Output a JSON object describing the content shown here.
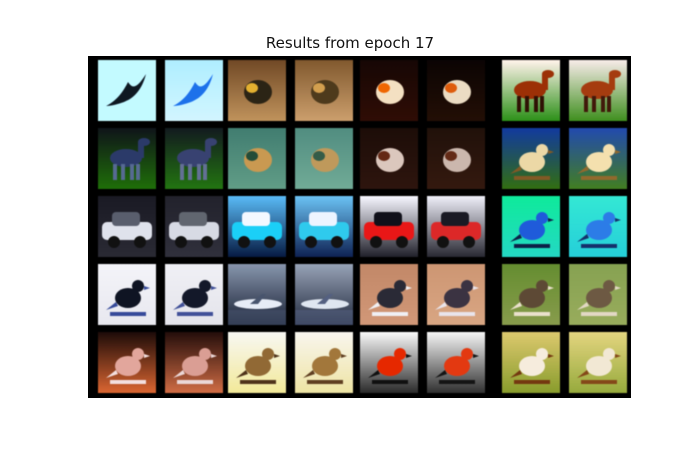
{
  "figure": {
    "title": "Results from epoch 17"
  },
  "grid": {
    "rows": 5,
    "cols": 8
  },
  "tiles": [
    {
      "subject": "bird-silhouette",
      "sky": "#ccf8ff",
      "ground": "#ccf8ff",
      "body": "#101820",
      "accent": "#2a2f40",
      "shape": "bird-fly"
    },
    {
      "subject": "bird-silhouette-reconstruction",
      "sky": "#b9ecff",
      "ground": "#d8f4ff",
      "body": "#2c6fd0",
      "accent": "#5aa6ff",
      "shape": "bird-fly"
    },
    {
      "subject": "bird-on-ground",
      "sky": "#6a4a2e",
      "ground": "#b89468",
      "body": "#2a2418",
      "accent": "#d9b04a",
      "shape": "blob"
    },
    {
      "subject": "bird-on-ground-reconstruction",
      "sky": "#7a5a38",
      "ground": "#c4a078",
      "body": "#4a3a22",
      "accent": "#caa060",
      "shape": "blob"
    },
    {
      "subject": "dark-scene",
      "sky": "#140806",
      "ground": "#2a0e08",
      "body": "#f0e0c8",
      "accent": "#d86a1a",
      "shape": "blob"
    },
    {
      "subject": "dark-scene-reconstruction",
      "sky": "#0a0404",
      "ground": "#201008",
      "body": "#e8dcc8",
      "accent": "#c86020",
      "shape": "blob"
    },
    {
      "subject": "horse",
      "sky": "#fff4ee",
      "ground": "#3a8a2a",
      "body": "#8a3412",
      "accent": "#2a1208",
      "shape": "quadruped"
    },
    {
      "subject": "horse-reconstruction",
      "sky": "#f6ecea",
      "ground": "#4a8a30",
      "body": "#94401c",
      "accent": "#3a1a0e",
      "shape": "quadruped"
    },
    {
      "subject": "ostrich",
      "sky": "#101418",
      "ground": "#2a6a18",
      "body": "#2e3a60",
      "accent": "#5a6a8a",
      "shape": "quadruped"
    },
    {
      "subject": "ostrich-reconstruction",
      "sky": "#141a1e",
      "ground": "#2e7020",
      "body": "#3a4268",
      "accent": "#66708e",
      "shape": "quadruped"
    },
    {
      "subject": "frog",
      "sky": "#4a7a70",
      "ground": "#6a9a88",
      "body": "#c09a60",
      "accent": "#2a4a3a",
      "shape": "blob"
    },
    {
      "subject": "frog-reconstruction",
      "sky": "#5a8a80",
      "ground": "#7aa898",
      "body": "#b89a68",
      "accent": "#3a5a4a",
      "shape": "blob"
    },
    {
      "subject": "horse-rider",
      "sky": "#1a0e0a",
      "ground": "#2a1610",
      "body": "#d8c8c0",
      "accent": "#5a2a1a",
      "shape": "blob"
    },
    {
      "subject": "horse-rider-reconstruction",
      "sky": "#1e120c",
      "ground": "#301a12",
      "body": "#c8b8b0",
      "accent": "#5a2c1c",
      "shape": "blob"
    },
    {
      "subject": "bird-perched",
      "sky": "#1a3a8a",
      "ground": "#3a6a20",
      "body": "#e8d8b0",
      "accent": "#7a5a30",
      "shape": "bird-perch"
    },
    {
      "subject": "bird-perched-reconstruction",
      "sky": "#2a4a9a",
      "ground": "#4a7a30",
      "body": "#f0e0b8",
      "accent": "#8a6a3a",
      "shape": "bird-perch"
    },
    {
      "subject": "car",
      "sky": "#1a1a22",
      "ground": "#2a2a32",
      "body": "#e0e2ea",
      "accent": "#5a5e6a",
      "shape": "car"
    },
    {
      "subject": "car-reconstruction",
      "sky": "#22222a",
      "ground": "#30303a",
      "body": "#d8dae2",
      "accent": "#62666e",
      "shape": "car"
    },
    {
      "subject": "truck",
      "sky": "#6ab8e8",
      "ground": "#0a1a3a",
      "body": "#38c8e8",
      "accent": "#f4f8ff",
      "shape": "car"
    },
    {
      "subject": "truck-reconstruction",
      "sky": "#7ac0e8",
      "ground": "#12224a",
      "body": "#48c4e0",
      "accent": "#eef4ff",
      "shape": "car"
    },
    {
      "subject": "vehicle",
      "sky": "#f8f8ff",
      "ground": "#202028",
      "body": "#c82020",
      "accent": "#101018",
      "shape": "car"
    },
    {
      "subject": "vehicle-reconstruction",
      "sky": "#f0f0f8",
      "ground": "#282830",
      "body": "#c03030",
      "accent": "#1a1a22",
      "shape": "car"
    },
    {
      "subject": "blue-bird",
      "sky": "#30e0a0",
      "ground": "#40d0c0",
      "body": "#2a5ac0",
      "accent": "#102040",
      "shape": "bird-perch"
    },
    {
      "subject": "blue-bird-reconstruction",
      "sky": "#50e0d0",
      "ground": "#40c8d0",
      "body": "#3a7ad0",
      "accent": "#1a3060",
      "shape": "bird-perch"
    },
    {
      "subject": "magpie",
      "sky": "#f4f4f8",
      "ground": "#e8e8ee",
      "body": "#101420",
      "accent": "#3a4a8a",
      "shape": "bird-perch"
    },
    {
      "subject": "magpie-reconstruction",
      "sky": "#f0f0f4",
      "ground": "#e4e4ea",
      "body": "#141826",
      "accent": "#44508a",
      "shape": "bird-perch"
    },
    {
      "subject": "airplane",
      "sky": "#8a96a8",
      "ground": "#1a2030",
      "body": "#e8ecf4",
      "accent": "#4a5468",
      "shape": "plane"
    },
    {
      "subject": "airplane-reconstruction",
      "sky": "#9aa4b4",
      "ground": "#222838",
      "body": "#e0e6ee",
      "accent": "#56607a",
      "shape": "plane"
    },
    {
      "subject": "bird-on-sand",
      "sky": "#b88a70",
      "ground": "#c89a80",
      "body": "#2a2a34",
      "accent": "#f0f0f4",
      "shape": "bird-perch"
    },
    {
      "subject": "bird-on-sand-reconstruction",
      "sky": "#c4987c",
      "ground": "#d0a88c",
      "body": "#3a3440",
      "accent": "#e8e4ea",
      "shape": "bird-perch"
    },
    {
      "subject": "bird-in-grass",
      "sky": "#6a8a40",
      "ground": "#8a9a5a",
      "body": "#5a4a3a",
      "accent": "#e8e0d0",
      "shape": "bird-perch"
    },
    {
      "subject": "bird-in-grass-reconstruction",
      "sky": "#8aa060",
      "ground": "#9aaa6a",
      "body": "#6a5a48",
      "accent": "#e0d8c8",
      "shape": "bird-perch"
    },
    {
      "subject": "pink-bird",
      "sky": "#1a0c0a",
      "ground": "#c86a40",
      "body": "#d8a8a0",
      "accent": "#f0e0e0",
      "shape": "bird-perch"
    },
    {
      "subject": "pink-bird-reconstruction",
      "sky": "#200e0c",
      "ground": "#c07050",
      "body": "#d0a098",
      "accent": "#e8d8d8",
      "shape": "bird-perch"
    },
    {
      "subject": "sparrow",
      "sky": "#f8f8f4",
      "ground": "#f0e8a8",
      "body": "#8a6a40",
      "accent": "#4a3420",
      "shape": "bird-perch"
    },
    {
      "subject": "sparrow-reconstruction",
      "sky": "#f8f6f0",
      "ground": "#ece4b0",
      "body": "#9a7848",
      "accent": "#5a4028",
      "shape": "bird-perch"
    },
    {
      "subject": "rooster",
      "sky": "#fafafa",
      "ground": "#2a2a2a",
      "body": "#c83010",
      "accent": "#101010",
      "shape": "bird-perch"
    },
    {
      "subject": "rooster-reconstruction",
      "sky": "#f6f6f6",
      "ground": "#303030",
      "body": "#c84020",
      "accent": "#141414",
      "shape": "bird-perch"
    },
    {
      "subject": "shrike",
      "sky": "#d8c880",
      "ground": "#8a9a40",
      "body": "#f4ece0",
      "accent": "#6a3a1a",
      "shape": "bird-perch"
    },
    {
      "subject": "shrike-reconstruction",
      "sky": "#e0d490",
      "ground": "#98a850",
      "body": "#f0e8d8",
      "accent": "#7a4a24",
      "shape": "bird-perch"
    }
  ]
}
